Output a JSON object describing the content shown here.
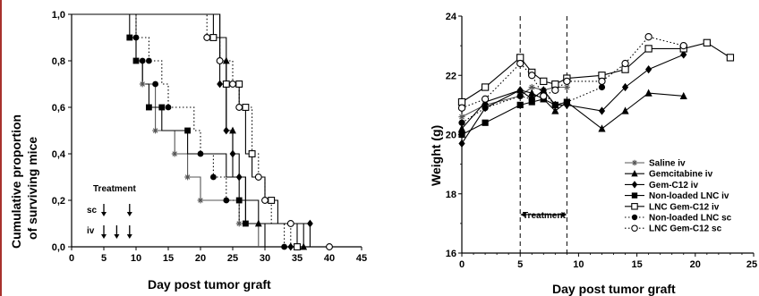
{
  "chart_data": [
    {
      "type": "line",
      "subtype": "step",
      "xlabel": "Day post tumor graft",
      "ylabel": "Cumulative proportion of surviving mice",
      "ylabel_lines": [
        "Cumulative proportion",
        "of surviving mice"
      ],
      "xlim": [
        0,
        45
      ],
      "ylim": [
        0,
        1
      ],
      "xticks": [
        0,
        5,
        10,
        15,
        20,
        25,
        30,
        35,
        40,
        45
      ],
      "xtick_labels": [
        "0",
        "5",
        "10",
        "15",
        "20",
        "25",
        "30",
        "35",
        "40",
        "45"
      ],
      "yticks": [
        0,
        0.2,
        0.4,
        0.6,
        0.8,
        1.0
      ],
      "ytick_labels": [
        "0,0",
        "0,2",
        "0,4",
        "0,6",
        "0,8",
        "1,0"
      ],
      "grid": false,
      "annotations": {
        "treatment_label": "Treatment",
        "sc_label": "sc",
        "iv_label": "iv",
        "sc_days": [
          5,
          9
        ],
        "iv_days": [
          5,
          7,
          9
        ]
      },
      "series": [
        {
          "marker": "star",
          "line": "solid",
          "color": "#555555",
          "points": [
            [
              0,
              1.0
            ],
            [
              10,
              1.0
            ],
            [
              10,
              0.8
            ],
            [
              11,
              0.8
            ],
            [
              11,
              0.7
            ],
            [
              13,
              0.7
            ],
            [
              13,
              0.5
            ],
            [
              16,
              0.5
            ],
            [
              16,
              0.4
            ],
            [
              18,
              0.4
            ],
            [
              18,
              0.3
            ],
            [
              20,
              0.3
            ],
            [
              20,
              0.2
            ],
            [
              26,
              0.2
            ],
            [
              26,
              0.1
            ],
            [
              29,
              0.1
            ],
            [
              29,
              0.0
            ]
          ]
        },
        {
          "marker": "filled-square",
          "line": "solid",
          "color": "#000000",
          "points": [
            [
              0,
              1.0
            ],
            [
              9,
              1.0
            ],
            [
              9,
              0.9
            ],
            [
              10,
              0.9
            ],
            [
              10,
              0.8
            ],
            [
              11,
              0.8
            ],
            [
              11,
              0.7
            ],
            [
              12,
              0.7
            ],
            [
              12,
              0.6
            ],
            [
              14,
              0.6
            ],
            [
              14,
              0.5
            ],
            [
              18,
              0.5
            ],
            [
              18,
              0.4
            ],
            [
              24,
              0.4
            ],
            [
              24,
              0.3
            ],
            [
              26,
              0.3
            ],
            [
              26,
              0.2
            ],
            [
              27,
              0.2
            ],
            [
              27,
              0.1
            ],
            [
              30,
              0.1
            ],
            [
              30,
              0.0
            ]
          ]
        },
        {
          "marker": "filled-triangle",
          "line": "solid",
          "color": "#000000",
          "points": [
            [
              0,
              1.0
            ],
            [
              23,
              1.0
            ],
            [
              23,
              0.8
            ],
            [
              24,
              0.8
            ],
            [
              24,
              0.5
            ],
            [
              25,
              0.5
            ],
            [
              25,
              0.3
            ],
            [
              27,
              0.3
            ],
            [
              27,
              0.1
            ],
            [
              35,
              0.1
            ],
            [
              35,
              0.0
            ]
          ]
        },
        {
          "marker": "filled-diamond",
          "line": "solid",
          "color": "#000000",
          "points": [
            [
              0,
              1.0
            ],
            [
              23,
              1.0
            ],
            [
              23,
              0.7
            ],
            [
              24,
              0.7
            ],
            [
              24,
              0.5
            ],
            [
              25,
              0.5
            ],
            [
              25,
              0.4
            ],
            [
              26,
              0.4
            ],
            [
              26,
              0.3
            ],
            [
              27,
              0.3
            ],
            [
              27,
              0.2
            ],
            [
              29,
              0.2
            ],
            [
              29,
              0.1
            ],
            [
              37,
              0.1
            ],
            [
              37,
              0.0
            ]
          ]
        },
        {
          "marker": "filled-circle",
          "line": "dotted",
          "color": "#000000",
          "points": [
            [
              0,
              1.0
            ],
            [
              10,
              1.0
            ],
            [
              10,
              0.9
            ],
            [
              12,
              0.9
            ],
            [
              12,
              0.8
            ],
            [
              14,
              0.8
            ],
            [
              14,
              0.7
            ],
            [
              15,
              0.7
            ],
            [
              15,
              0.6
            ],
            [
              19,
              0.6
            ],
            [
              19,
              0.5
            ],
            [
              20,
              0.5
            ],
            [
              20,
              0.4
            ],
            [
              22,
              0.4
            ],
            [
              22,
              0.3
            ],
            [
              24,
              0.3
            ],
            [
              24,
              0.2
            ],
            [
              26,
              0.2
            ],
            [
              26,
              0.1
            ],
            [
              33,
              0.1
            ],
            [
              33,
              0.0
            ]
          ]
        },
        {
          "marker": "open-circle",
          "line": "dotted",
          "color": "#000000",
          "points": [
            [
              0,
              1.0
            ],
            [
              21,
              1.0
            ],
            [
              21,
              0.9
            ],
            [
              23,
              0.9
            ],
            [
              23,
              0.8
            ],
            [
              25,
              0.8
            ],
            [
              25,
              0.7
            ],
            [
              26,
              0.7
            ],
            [
              26,
              0.6
            ],
            [
              28,
              0.6
            ],
            [
              28,
              0.4
            ],
            [
              29,
              0.4
            ],
            [
              29,
              0.3
            ],
            [
              30,
              0.3
            ],
            [
              30,
              0.2
            ],
            [
              31,
              0.2
            ],
            [
              31,
              0.1
            ],
            [
              34,
              0.1
            ],
            [
              34,
              0.0
            ],
            [
              40,
              0.0
            ]
          ]
        },
        {
          "marker": "open-square",
          "line": "solid",
          "color": "#000000",
          "points": [
            [
              0,
              1.0
            ],
            [
              22,
              1.0
            ],
            [
              22,
              0.9
            ],
            [
              24,
              0.9
            ],
            [
              24,
              0.7
            ],
            [
              26,
              0.7
            ],
            [
              26,
              0.6
            ],
            [
              27,
              0.6
            ],
            [
              27,
              0.4
            ],
            [
              28,
              0.4
            ],
            [
              28,
              0.3
            ],
            [
              30,
              0.3
            ],
            [
              30,
              0.2
            ],
            [
              32,
              0.2
            ],
            [
              32,
              0.1
            ],
            [
              36,
              0.1
            ],
            [
              36,
              0.0
            ]
          ]
        }
      ],
      "censor_marks": [
        {
          "x": 9,
          "y": 0.9,
          "marker": "filled-square"
        },
        {
          "x": 10,
          "y": 0.9,
          "marker": "filled-circle"
        },
        {
          "x": 11,
          "y": 0.8,
          "marker": "filled-circle"
        },
        {
          "x": 12,
          "y": 0.8,
          "marker": "filled-circle"
        },
        {
          "x": 10,
          "y": 0.8,
          "marker": "filled-square"
        },
        {
          "x": 13,
          "y": 0.7,
          "marker": "filled-circle"
        },
        {
          "x": 11,
          "y": 0.7,
          "marker": "star"
        },
        {
          "x": 12,
          "y": 0.6,
          "marker": "filled-square"
        },
        {
          "x": 14,
          "y": 0.6,
          "marker": "filled-square"
        },
        {
          "x": 15,
          "y": 0.6,
          "marker": "filled-circle"
        },
        {
          "x": 13,
          "y": 0.5,
          "marker": "star"
        },
        {
          "x": 18,
          "y": 0.5,
          "marker": "filled-square"
        },
        {
          "x": 16,
          "y": 0.4,
          "marker": "star"
        },
        {
          "x": 20,
          "y": 0.4,
          "marker": "filled-circle"
        },
        {
          "x": 18,
          "y": 0.3,
          "marker": "star"
        },
        {
          "x": 22,
          "y": 0.3,
          "marker": "filled-circle"
        },
        {
          "x": 20,
          "y": 0.2,
          "marker": "star"
        },
        {
          "x": 24,
          "y": 0.2,
          "marker": "filled-circle"
        },
        {
          "x": 26,
          "y": 0.1,
          "marker": "star"
        },
        {
          "x": 21,
          "y": 0.9,
          "marker": "open-circle"
        },
        {
          "x": 22,
          "y": 0.9,
          "marker": "open-square"
        },
        {
          "x": 23,
          "y": 0.8,
          "marker": "open-circle"
        },
        {
          "x": 24,
          "y": 0.8,
          "marker": "filled-triangle"
        },
        {
          "x": 23,
          "y": 0.7,
          "marker": "filled-diamond"
        },
        {
          "x": 24,
          "y": 0.7,
          "marker": "open-square"
        },
        {
          "x": 25,
          "y": 0.7,
          "marker": "open-circle"
        },
        {
          "x": 26,
          "y": 0.7,
          "marker": "open-square"
        },
        {
          "x": 24,
          "y": 0.5,
          "marker": "filled-diamond"
        },
        {
          "x": 25,
          "y": 0.5,
          "marker": "filled-triangle"
        },
        {
          "x": 26,
          "y": 0.6,
          "marker": "open-circle"
        },
        {
          "x": 27,
          "y": 0.6,
          "marker": "open-square"
        },
        {
          "x": 25,
          "y": 0.4,
          "marker": "filled-diamond"
        },
        {
          "x": 26,
          "y": 0.3,
          "marker": "filled-diamond"
        },
        {
          "x": 28,
          "y": 0.4,
          "marker": "open-square"
        },
        {
          "x": 29,
          "y": 0.3,
          "marker": "open-circle"
        },
        {
          "x": 30,
          "y": 0.2,
          "marker": "open-circle"
        },
        {
          "x": 31,
          "y": 0.2,
          "marker": "open-square"
        },
        {
          "x": 26,
          "y": 0.2,
          "marker": "filled-square"
        },
        {
          "x": 27,
          "y": 0.1,
          "marker": "filled-square"
        },
        {
          "x": 29,
          "y": 0.1,
          "marker": "filled-triangle"
        },
        {
          "x": 34,
          "y": 0.1,
          "marker": "open-circle"
        },
        {
          "x": 33,
          "y": 0.0,
          "marker": "filled-circle"
        },
        {
          "x": 34,
          "y": 0.0,
          "marker": "filled-diamond"
        },
        {
          "x": 35,
          "y": 0.0,
          "marker": "open-square"
        },
        {
          "x": 36,
          "y": 0.0,
          "marker": "filled-triangle"
        },
        {
          "x": 37,
          "y": 0.1,
          "marker": "filled-diamond"
        },
        {
          "x": 40,
          "y": 0.0,
          "marker": "open-circle"
        }
      ]
    },
    {
      "type": "line",
      "xlabel": "Day post tumor graft",
      "ylabel": "Weight (g)",
      "xlim": [
        0,
        25
      ],
      "ylim": [
        16,
        24
      ],
      "xticks": [
        0,
        5,
        10,
        15,
        20,
        25
      ],
      "xtick_labels": [
        "0",
        "5",
        "10",
        "15",
        "20",
        "25"
      ],
      "yticks": [
        16,
        18,
        20,
        22,
        24
      ],
      "ytick_labels": [
        "16",
        "18",
        "20",
        "22",
        "24"
      ],
      "grid": false,
      "legend_position": "bottom-right",
      "vertical_dashed_lines_x": [
        5,
        9
      ],
      "annotations": {
        "treatment_label": "Treatment",
        "treatment_range": [
          5,
          9
        ],
        "treatment_y": 17.3
      },
      "series": [
        {
          "name": "Saline iv",
          "marker": "star",
          "line": "solid",
          "x": [
            0,
            2,
            5,
            6,
            7,
            8,
            9
          ],
          "y": [
            20.6,
            21.0,
            21.3,
            21.6,
            21.5,
            21.6,
            21.6
          ]
        },
        {
          "name": "Gemcitabine iv",
          "marker": "filled-triangle",
          "line": "solid",
          "x": [
            0,
            2,
            5,
            6,
            7,
            8,
            9,
            12,
            14,
            16,
            19
          ],
          "y": [
            20.2,
            21.1,
            21.5,
            21.4,
            21.2,
            20.8,
            21.1,
            20.2,
            20.8,
            21.4,
            21.3
          ]
        },
        {
          "name": "Gem-C12 iv",
          "marker": "filled-diamond",
          "line": "solid",
          "x": [
            0,
            2,
            5,
            6,
            7,
            8,
            9,
            12,
            14,
            16,
            19
          ],
          "y": [
            19.7,
            20.9,
            21.5,
            21.2,
            21.5,
            21.0,
            21.0,
            20.8,
            21.6,
            22.2,
            22.7
          ]
        },
        {
          "name": "Non-loaded LNC iv",
          "marker": "filled-square",
          "line": "solid",
          "x": [
            0,
            2,
            5,
            6,
            7,
            8,
            9
          ],
          "y": [
            20.0,
            20.4,
            21.0,
            21.1,
            21.2,
            21.0,
            21.1
          ]
        },
        {
          "name": "LNC Gem-C12 iv",
          "marker": "open-square",
          "line": "solid",
          "x": [
            0,
            2,
            5,
            6,
            7,
            8,
            9,
            12,
            14,
            16,
            19,
            21,
            23
          ],
          "y": [
            21.1,
            21.6,
            22.6,
            22.1,
            21.8,
            21.7,
            21.9,
            22.0,
            22.2,
            22.9,
            22.9,
            23.1,
            22.6
          ]
        },
        {
          "name": "Non-loaded LNC sc",
          "marker": "filled-circle",
          "line": "dotted",
          "x": [
            0,
            2,
            5,
            6,
            7,
            8,
            9,
            12
          ],
          "y": [
            20.4,
            20.9,
            21.3,
            21.2,
            21.4,
            21.0,
            21.1,
            21.6
          ]
        },
        {
          "name": "LNC Gem-C12 sc",
          "marker": "open-circle",
          "line": "dotted",
          "x": [
            0,
            2,
            5,
            6,
            7,
            8,
            9,
            12,
            14,
            16,
            19
          ],
          "y": [
            20.9,
            21.2,
            22.4,
            22.0,
            21.3,
            21.5,
            21.8,
            21.8,
            22.4,
            23.3,
            23.0
          ]
        }
      ]
    }
  ]
}
